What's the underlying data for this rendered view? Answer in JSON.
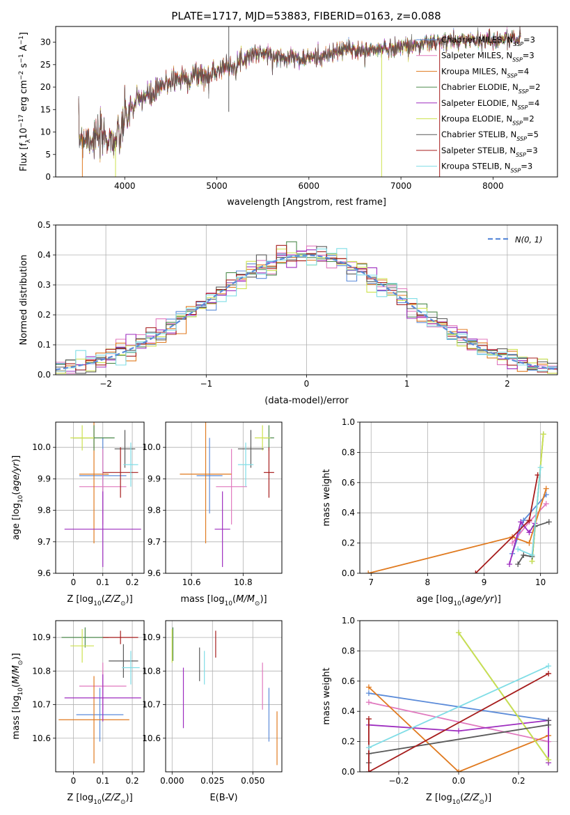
{
  "figure": {
    "title": "PLATE=1717, MJD=53883, FIBERID=0163, z=0.088"
  },
  "colors": {
    "Chabrier MILES": "#5b8bd9",
    "Salpeter MILES": "#e078be",
    "Kroupa MILES": "#e07a1f",
    "Chabrier ELODIE": "#4c8a4c",
    "Salpeter ELODIE": "#9d2cbf",
    "Kroupa ELODIE": "#cde24e",
    "Chabrier STELIB": "#595959",
    "Salpeter STELIB": "#a61c1c",
    "Kroupa STELIB": "#7fdde6"
  },
  "legend": {
    "entries": [
      {
        "model": "Chabrier MILES",
        "label": "Chabrier MILES, N",
        "sub": "SSP",
        "n": "=3"
      },
      {
        "model": "Salpeter MILES",
        "label": "Salpeter MILES, N",
        "sub": "SSP",
        "n": "=3"
      },
      {
        "model": "Kroupa MILES",
        "label": "Kroupa MILES, N",
        "sub": "SSP",
        "n": "=4"
      },
      {
        "model": "Chabrier ELODIE",
        "label": "Chabrier ELODIE, N",
        "sub": "SSP",
        "n": "=2"
      },
      {
        "model": "Salpeter ELODIE",
        "label": "Salpeter ELODIE, N",
        "sub": "SSP",
        "n": "=4"
      },
      {
        "model": "Kroupa ELODIE",
        "label": "Kroupa ELODIE, N",
        "sub": "SSP",
        "n": "=2"
      },
      {
        "model": "Chabrier STELIB",
        "label": "Chabrier STELIB, N",
        "sub": "SSP",
        "n": "=5"
      },
      {
        "model": "Salpeter STELIB",
        "label": "Salpeter STELIB, N",
        "sub": "SSP",
        "n": "=3"
      },
      {
        "model": "Kroupa STELIB",
        "label": "Kroupa STELIB, N",
        "sub": "SSP",
        "n": "=3"
      }
    ],
    "normal_label": "N(0, 1)"
  },
  "chart_data": [
    {
      "id": "spectrum",
      "type": "line",
      "xlabel": "wavelength [Angstrom, rest frame]",
      "ylabel": "Flux [f_λ 10^-17 erg cm^-2 s^-1 A^-1]",
      "xlim": [
        3250,
        8700
      ],
      "ylim": [
        0,
        33.5
      ],
      "xticks": [
        4000,
        5000,
        6000,
        7000,
        8000
      ],
      "yticks": [
        0,
        5,
        10,
        15,
        20,
        25,
        30
      ],
      "continuum_points": [
        [
          3500,
          9
        ],
        [
          3700,
          8.5
        ],
        [
          3800,
          9
        ],
        [
          3900,
          8
        ],
        [
          3950,
          9
        ],
        [
          4000,
          13
        ],
        [
          4100,
          16
        ],
        [
          4200,
          18
        ],
        [
          4300,
          18
        ],
        [
          4400,
          20
        ],
        [
          4500,
          21.5
        ],
        [
          4600,
          22
        ],
        [
          4700,
          22
        ],
        [
          4800,
          23
        ],
        [
          4900,
          22
        ],
        [
          5000,
          24
        ],
        [
          5100,
          24.5
        ],
        [
          5200,
          25
        ],
        [
          5300,
          26.5
        ],
        [
          5400,
          27.5
        ],
        [
          5500,
          27.5
        ],
        [
          5600,
          27
        ],
        [
          5700,
          26.5
        ],
        [
          5800,
          27
        ],
        [
          5900,
          26
        ],
        [
          6000,
          26.5
        ],
        [
          6200,
          27
        ],
        [
          6400,
          28.5
        ],
        [
          6600,
          28
        ],
        [
          6800,
          28.5
        ],
        [
          7000,
          29
        ],
        [
          7200,
          29.5
        ],
        [
          7400,
          30
        ],
        [
          7700,
          30.5
        ],
        [
          8000,
          30.5
        ],
        [
          8300,
          31
        ]
      ],
      "spikes": [
        {
          "x": 5130,
          "y": 33.5,
          "y_low": 14.5,
          "model": "Chabrier STELIB"
        },
        {
          "x": 6790,
          "y": 0,
          "model": "Kroupa ELODIE"
        },
        {
          "x": 7420,
          "y": 0,
          "model": "Salpeter STELIB"
        },
        {
          "x": 3540,
          "y": 0,
          "model": "Kroupa MILES"
        },
        {
          "x": 3900,
          "y": 0,
          "model": "Kroupa ELODIE"
        }
      ]
    },
    {
      "id": "residuals",
      "type": "histogram",
      "xlabel": "(data-model)/error",
      "ylabel": "Normed distribution",
      "xlim": [
        -2.5,
        2.5
      ],
      "ylim": [
        0,
        0.5
      ],
      "xticks": [
        -2,
        -1,
        0,
        1,
        2
      ],
      "xticklabels": [
        "−2",
        "−1",
        "0",
        "1",
        "2"
      ],
      "yticks": [
        0,
        0.1,
        0.2,
        0.3,
        0.4,
        0.5
      ],
      "bin_width": 0.1,
      "n_bins": 50,
      "normal": {
        "mean": 0,
        "sigma": 1
      }
    },
    {
      "id": "age_vs_Z",
      "type": "scatter",
      "xlabel": "Z [log10(Z/Z☉)]",
      "ylabel": "age [log10(age/yr)]",
      "xlim": [
        -0.06,
        0.24
      ],
      "ylim": [
        9.6,
        10.08
      ],
      "xticks": [
        0,
        0.1,
        0.2
      ],
      "yticks": [
        9.6,
        9.7,
        9.8,
        9.9,
        10.0
      ],
      "points": [
        {
          "model": "Chabrier MILES",
          "x": 0.1,
          "xerr": 0.08,
          "y": 9.91,
          "yerr": 0.12
        },
        {
          "model": "Salpeter MILES",
          "x": 0.1,
          "xerr": 0.08,
          "y": 9.875,
          "yerr": 0.12
        },
        {
          "model": "Kroupa MILES",
          "x": 0.07,
          "xerr": 0.05,
          "y": 9.915,
          "yerr": 0.22
        },
        {
          "model": "Chabrier ELODIE",
          "x": 0.07,
          "xerr": 0.07,
          "y": 10.03,
          "yerr": 0.04
        },
        {
          "model": "Salpeter ELODIE",
          "x": 0.1,
          "xerr": 0.13,
          "y": 9.74,
          "yerr": 0.12
        },
        {
          "model": "Kroupa ELODIE",
          "x": 0.03,
          "xerr": 0.04,
          "y": 10.03,
          "yerr": 0.04
        },
        {
          "model": "Chabrier STELIB",
          "x": 0.175,
          "xerr": 0.035,
          "y": 9.995,
          "yerr": 0.06
        },
        {
          "model": "Salpeter STELIB",
          "x": 0.16,
          "xerr": 0.06,
          "y": 9.92,
          "yerr": 0.08
        },
        {
          "model": "Kroupa STELIB",
          "x": 0.195,
          "xerr": 0.025,
          "y": 9.945,
          "yerr": 0.07
        }
      ]
    },
    {
      "id": "age_vs_mass",
      "type": "scatter",
      "xlabel": "mass [log10(M/M☉)]",
      "ylabel": "",
      "xlim": [
        10.5,
        10.95
      ],
      "ylim": [
        9.6,
        10.08
      ],
      "xticks": [
        10.6,
        10.8
      ],
      "yticks": [
        9.6,
        9.7,
        9.8,
        9.9,
        10.0
      ],
      "points": [
        {
          "model": "Chabrier MILES",
          "x": 10.67,
          "xerr": 0.05,
          "y": 9.91,
          "yerr": 0.12
        },
        {
          "model": "Salpeter MILES",
          "x": 10.755,
          "xerr": 0.06,
          "y": 9.875,
          "yerr": 0.12
        },
        {
          "model": "Kroupa MILES",
          "x": 10.655,
          "xerr": 0.1,
          "y": 9.915,
          "yerr": 0.22
        },
        {
          "model": "Chabrier ELODIE",
          "x": 10.9,
          "xerr": 0.02,
          "y": 10.03,
          "yerr": 0.04
        },
        {
          "model": "Salpeter ELODIE",
          "x": 10.72,
          "xerr": 0.03,
          "y": 9.74,
          "yerr": 0.12
        },
        {
          "model": "Kroupa ELODIE",
          "x": 10.875,
          "xerr": 0.03,
          "y": 10.03,
          "yerr": 0.04
        },
        {
          "model": "Chabrier STELIB",
          "x": 10.83,
          "xerr": 0.05,
          "y": 9.995,
          "yerr": 0.06
        },
        {
          "model": "Salpeter STELIB",
          "x": 10.9,
          "xerr": 0.02,
          "y": 9.92,
          "yerr": 0.08
        },
        {
          "model": "Kroupa STELIB",
          "x": 10.81,
          "xerr": 0.03,
          "y": 9.945,
          "yerr": 0.07
        }
      ]
    },
    {
      "id": "massweight_vs_age",
      "type": "line",
      "xlabel": "age [log10(age/yr)]",
      "ylabel": "mass weight",
      "xlim": [
        6.8,
        10.3
      ],
      "ylim": [
        0,
        1.0
      ],
      "xticks": [
        7,
        8,
        9,
        10
      ],
      "yticks": [
        0,
        0.2,
        0.4,
        0.6,
        0.8,
        1.0
      ],
      "series": [
        {
          "model": "Chabrier MILES",
          "x": [
            9.5,
            9.7,
            10.1
          ],
          "y": [
            0.13,
            0.35,
            0.52
          ]
        },
        {
          "model": "Salpeter MILES",
          "x": [
            9.5,
            9.8,
            10.1
          ],
          "y": [
            0.2,
            0.34,
            0.46
          ]
        },
        {
          "model": "Kroupa MILES",
          "x": [
            6.95,
            9.5,
            9.8,
            10.1
          ],
          "y": [
            0.0,
            0.24,
            0.2,
            0.56
          ]
        },
        {
          "model": "Chabrier ELODIE",
          "x": [
            9.85,
            10.05
          ],
          "y": [
            0.08,
            0.92
          ]
        },
        {
          "model": "Salpeter ELODIE",
          "x": [
            9.45,
            9.65,
            9.8,
            9.9
          ],
          "y": [
            0.06,
            0.34,
            0.27,
            0.33
          ]
        },
        {
          "model": "Kroupa ELODIE",
          "x": [
            9.85,
            10.05
          ],
          "y": [
            0.08,
            0.92
          ]
        },
        {
          "model": "Chabrier STELIB",
          "x": [
            9.6,
            9.7,
            9.85,
            9.9,
            10.15
          ],
          "y": [
            0.06,
            0.12,
            0.11,
            0.31,
            0.34
          ]
        },
        {
          "model": "Salpeter STELIB",
          "x": [
            8.85,
            9.8,
            9.95
          ],
          "y": [
            0.0,
            0.35,
            0.65
          ]
        },
        {
          "model": "Kroupa STELIB",
          "x": [
            9.6,
            9.85,
            10.0
          ],
          "y": [
            0.16,
            0.12,
            0.7
          ]
        }
      ]
    },
    {
      "id": "mass_vs_Z",
      "type": "scatter",
      "xlabel": "Z [log10(Z/Z☉)]",
      "ylabel": "mass [log10(M/M☉)]",
      "xlim": [
        -0.06,
        0.24
      ],
      "ylim": [
        10.5,
        10.95
      ],
      "xticks": [
        0,
        0.1,
        0.2
      ],
      "yticks": [
        10.6,
        10.7,
        10.8,
        10.9
      ],
      "points": [
        {
          "model": "Chabrier MILES",
          "x": 0.09,
          "xerr": 0.08,
          "y": 10.67,
          "yerr": 0.08
        },
        {
          "model": "Salpeter MILES",
          "x": 0.1,
          "xerr": 0.08,
          "y": 10.755,
          "yerr": 0.07
        },
        {
          "model": "Kroupa MILES",
          "x": 0.07,
          "xerr": 0.12,
          "y": 10.655,
          "yerr": 0.13
        },
        {
          "model": "Chabrier ELODIE",
          "x": 0.04,
          "xerr": 0.08,
          "y": 10.9,
          "yerr": 0.03
        },
        {
          "model": "Salpeter ELODIE",
          "x": 0.1,
          "xerr": 0.13,
          "y": 10.72,
          "yerr": 0.07
        },
        {
          "model": "Kroupa ELODIE",
          "x": 0.03,
          "xerr": 0.04,
          "y": 10.875,
          "yerr": 0.05
        },
        {
          "model": "Chabrier STELIB",
          "x": 0.17,
          "xerr": 0.05,
          "y": 10.83,
          "yerr": 0.05
        },
        {
          "model": "Salpeter STELIB",
          "x": 0.16,
          "xerr": 0.06,
          "y": 10.9,
          "yerr": 0.02
        },
        {
          "model": "Kroupa STELIB",
          "x": 0.195,
          "xerr": 0.03,
          "y": 10.81,
          "yerr": 0.05
        }
      ]
    },
    {
      "id": "mass_vs_ebv",
      "type": "scatter",
      "xlabel": "E(B-V)",
      "ylabel": "",
      "xlim": [
        -0.004,
        0.068
      ],
      "ylim": [
        10.5,
        10.95
      ],
      "xticks": [
        0.0,
        0.025,
        0.05
      ],
      "xticklabels": [
        "0.000",
        "0.025",
        "0.050"
      ],
      "yticks": [
        10.6,
        10.7,
        10.8,
        10.9
      ],
      "points": [
        {
          "model": "Chabrier MILES",
          "x": 0.06,
          "xerr": 0,
          "y": 10.67,
          "yerr": 0.08
        },
        {
          "model": "Salpeter MILES",
          "x": 0.056,
          "xerr": 0,
          "y": 10.755,
          "yerr": 0.07
        },
        {
          "model": "Kroupa MILES",
          "x": 0.065,
          "xerr": 0,
          "y": 10.6,
          "yerr": 0.08
        },
        {
          "model": "Chabrier ELODIE",
          "x": 0.0005,
          "xerr": 0,
          "y": 10.88,
          "yerr": 0.05
        },
        {
          "model": "Salpeter ELODIE",
          "x": 0.007,
          "xerr": 0,
          "y": 10.72,
          "yerr": 0.09
        },
        {
          "model": "Kroupa ELODIE",
          "x": 0.0,
          "xerr": 0,
          "y": 10.875,
          "yerr": 0.05
        },
        {
          "model": "Chabrier STELIB",
          "x": 0.017,
          "xerr": 0,
          "y": 10.82,
          "yerr": 0.05
        },
        {
          "model": "Salpeter STELIB",
          "x": 0.027,
          "xerr": 0,
          "y": 10.88,
          "yerr": 0.04
        },
        {
          "model": "Kroupa STELIB",
          "x": 0.02,
          "xerr": 0,
          "y": 10.81,
          "yerr": 0.05
        }
      ]
    },
    {
      "id": "massweight_vs_Z",
      "type": "line",
      "xlabel": "Z [log10(Z/Z☉)]",
      "ylabel": "mass weight",
      "xlim": [
        -0.33,
        0.33
      ],
      "ylim": [
        0,
        1.0
      ],
      "xticks": [
        -0.2,
        0.0,
        0.2
      ],
      "xticklabels": [
        "−0.2",
        "0.0",
        "0.2"
      ],
      "yticks": [
        0,
        0.2,
        0.4,
        0.6,
        0.8,
        1.0
      ],
      "series": [
        {
          "model": "Chabrier MILES",
          "x": [
            -0.3,
            0.3
          ],
          "y": [
            0.52,
            0.34
          ]
        },
        {
          "model": "Salpeter MILES",
          "x": [
            -0.3,
            0.3
          ],
          "y": [
            0.46,
            0.2
          ]
        },
        {
          "model": "Kroupa MILES",
          "x": [
            -0.3,
            0.0,
            0.3
          ],
          "y": [
            0.56,
            0.0,
            0.24
          ]
        },
        {
          "model": "Chabrier ELODIE",
          "x": [
            0.0,
            0.3
          ],
          "y": [
            0.92,
            0.08
          ]
        },
        {
          "model": "Salpeter ELODIE",
          "x": [
            -0.3,
            0.0,
            0.3,
            0.3
          ],
          "y": [
            0.31,
            0.27,
            0.34,
            0.06
          ]
        },
        {
          "model": "Kroupa ELODIE",
          "x": [
            0.0,
            0.3
          ],
          "y": [
            0.92,
            0.08
          ]
        },
        {
          "model": "Chabrier STELIB",
          "x": [
            -0.3,
            -0.3,
            0.3,
            0.3
          ],
          "y": [
            0.06,
            0.12,
            0.31,
            0.34
          ]
        },
        {
          "model": "Salpeter STELIB",
          "x": [
            -0.3,
            -0.3,
            0.3
          ],
          "y": [
            0.35,
            0.0,
            0.65
          ]
        },
        {
          "model": "Kroupa STELIB",
          "x": [
            -0.3,
            0.3
          ],
          "y": [
            0.16,
            0.7
          ]
        }
      ]
    }
  ]
}
